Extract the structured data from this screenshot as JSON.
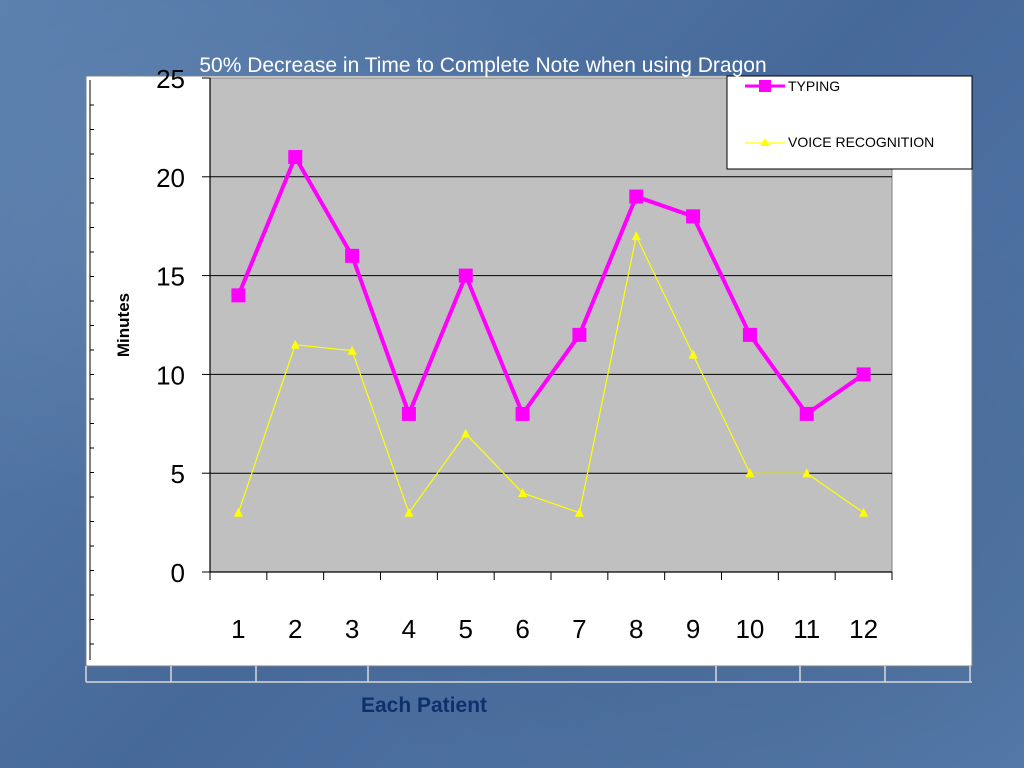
{
  "chart_data": {
    "type": "line",
    "title": "50% Decrease in Time to Complete Note when using Dragon",
    "xlabel": "Each Patient",
    "ylabel": "Minutes",
    "categories": [
      "1",
      "2",
      "3",
      "4",
      "5",
      "6",
      "7",
      "8",
      "9",
      "10",
      "11",
      "12"
    ],
    "ylim": [
      0,
      25
    ],
    "yticks": [
      "0",
      "5",
      "10",
      "15",
      "20",
      "25"
    ],
    "grid": true,
    "legend_position": "top-right",
    "series": [
      {
        "name": "TYPING",
        "color": "#ff00ff",
        "marker": "square",
        "values": [
          14,
          21,
          16,
          8,
          15,
          8,
          12,
          19,
          18,
          12,
          8,
          10
        ]
      },
      {
        "name": "VOICE RECOGNITION",
        "color": "#ffff00",
        "marker": "triangle",
        "values": [
          3,
          11.5,
          11.2,
          3,
          7,
          4,
          3,
          17,
          11,
          5,
          5,
          3
        ]
      }
    ],
    "colors": {
      "plot_background": "#c0c0c0",
      "chart_background": "#ffffff",
      "gridline": "#000000"
    }
  }
}
